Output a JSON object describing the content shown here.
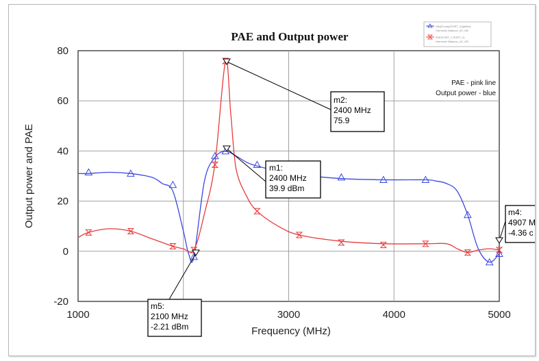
{
  "chart_data": {
    "type": "line",
    "title": "PAE and Output power",
    "xlabel": "Frequency (MHz)",
    "ylabel": "Output power and PAE",
    "xlim": [
      1000,
      5000
    ],
    "ylim": [
      -20,
      80
    ],
    "xticks": [
      "1000",
      "2000",
      "3000",
      "4000",
      "5000"
    ],
    "yticks": [
      "-20",
      "0",
      "20",
      "40",
      "60",
      "80"
    ],
    "grid": true,
    "annotation_lines": [
      "PAE - pink line",
      "Output power - blue"
    ],
    "legend_entries": [
      "DB(|Pcomp(PORT_2)|)[dBm]",
      "Harmonic Balance_AF_HB",
      "PAE(PORT_1,PORT_2)",
      "Harmonic Balance_AF_HB"
    ],
    "series": [
      {
        "color": "#3a47e0",
        "marker": "triangle-up",
        "x": [
          1000,
          1100,
          1300,
          1500,
          1700,
          1800,
          1900,
          2000,
          2050,
          2100,
          2200,
          2300,
          2400,
          2500,
          2600,
          2700,
          2900,
          3100,
          3500,
          3900,
          4300,
          4400,
          4500,
          4600,
          4700,
          4800,
          4907,
          5000
        ],
        "values": [
          31,
          31,
          31.5,
          31,
          29.5,
          27,
          24,
          8,
          -1,
          -2.21,
          28,
          37.5,
          39.9,
          38,
          35.5,
          34,
          32,
          30.5,
          29,
          28.5,
          28.5,
          28,
          27,
          24,
          14.5,
          1,
          -4.36,
          -1
        ],
        "markers_x": [
          1100,
          1500,
          1900,
          2100,
          2300,
          2400,
          2700,
          3500,
          3900,
          4300,
          4700,
          4907,
          5000
        ],
        "markers_y": [
          31.5,
          31,
          26.5,
          -2.21,
          38,
          39.9,
          34.5,
          29.5,
          28.5,
          28.5,
          14.5,
          -4.36,
          -1
        ]
      },
      {
        "color": "#e83a3a",
        "marker": "hourglass",
        "x": [
          1000,
          1100,
          1300,
          1500,
          1700,
          1900,
          2000,
          2100,
          2200,
          2300,
          2400,
          2450,
          2500,
          2600,
          2700,
          2900,
          3100,
          3500,
          3900,
          4300,
          4500,
          4600,
          4700,
          4800,
          4907,
          5000
        ],
        "values": [
          5.5,
          7.5,
          9,
          8,
          5,
          2,
          1,
          0.5,
          15,
          35,
          75.9,
          55,
          33,
          22,
          16,
          10,
          6.5,
          4,
          3,
          3,
          3,
          1,
          -0.5,
          0.5,
          1,
          0.5
        ],
        "markers_x": [
          1100,
          1500,
          1900,
          2100,
          2300,
          2400,
          2700,
          3100,
          3500,
          3900,
          4300,
          4700,
          5000
        ],
        "markers_y": [
          7.5,
          8,
          2,
          0.5,
          34.5,
          75.9,
          16,
          6.5,
          3.5,
          2.5,
          3,
          -0.5,
          0.5
        ]
      }
    ],
    "markers": [
      {
        "id": "m2",
        "lines": [
          "m2:",
          "2400 MHz",
          "75.9"
        ],
        "x": 2400,
        "y": 75.9
      },
      {
        "id": "m1",
        "lines": [
          "m1:",
          "2400 MHz",
          "39.9 dBm"
        ],
        "x": 2400,
        "y": 39.9
      },
      {
        "id": "m5",
        "lines": [
          "m5:",
          "2100 MHz",
          "-2.21 dBm"
        ],
        "x": 2100,
        "y": -2.21
      },
      {
        "id": "m4",
        "lines": [
          "m4:",
          "4907 M",
          "-4.36 c"
        ],
        "x": 4907,
        "y": -4.36
      }
    ]
  }
}
